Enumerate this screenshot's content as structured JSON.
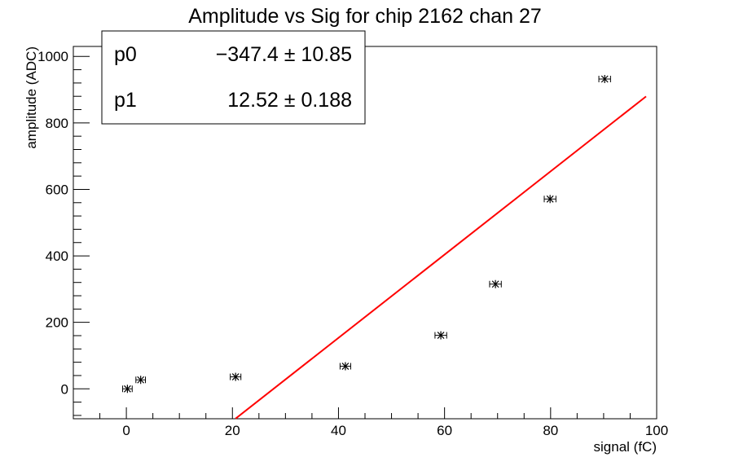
{
  "chart_data": {
    "type": "scatter",
    "title": "Amplitude vs Sig for chip 2162 chan 27",
    "xlabel": "signal (fC)",
    "ylabel": "amplitude (ADC)",
    "xlim": [
      -10,
      100
    ],
    "ylim": [
      -90,
      1030
    ],
    "x_ticks": [
      0,
      20,
      40,
      60,
      80,
      100
    ],
    "y_ticks": [
      0,
      200,
      400,
      600,
      800,
      1000
    ],
    "grid": false,
    "series": [
      {
        "marker": "star",
        "color": "#000000",
        "points": [
          {
            "x": 0.2,
            "y": 0,
            "xerr": 0.9
          },
          {
            "x": 2.7,
            "y": 27,
            "xerr": 0.9
          },
          {
            "x": 20.6,
            "y": 36,
            "xerr": 1.0
          },
          {
            "x": 41.3,
            "y": 68,
            "xerr": 1.0
          },
          {
            "x": 59.3,
            "y": 161,
            "xerr": 1.1
          },
          {
            "x": 69.6,
            "y": 315,
            "xerr": 1.1
          },
          {
            "x": 79.9,
            "y": 571,
            "xerr": 1.1
          },
          {
            "x": 90.2,
            "y": 932,
            "xerr": 1.1
          }
        ]
      }
    ],
    "fit": {
      "color": "#ff0000",
      "p0": -347.4,
      "p1": 12.52,
      "x_range": [
        20.6,
        98
      ]
    },
    "stats_box": {
      "rows": [
        {
          "name": "p0",
          "value": "−347.4 ± 10.85"
        },
        {
          "name": "p1",
          "value": "12.52 ± 0.188"
        }
      ]
    }
  }
}
